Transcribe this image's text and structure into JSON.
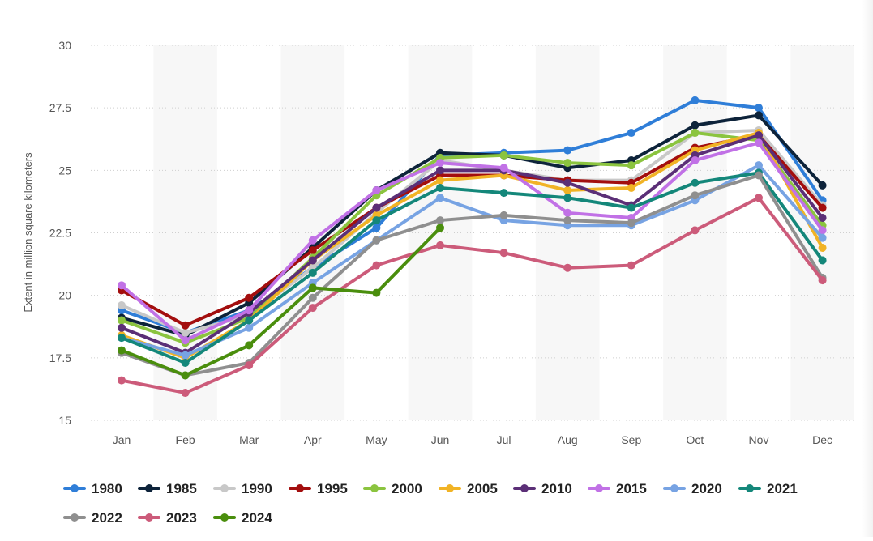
{
  "chart_data": {
    "type": "line",
    "title": "",
    "xlabel": "",
    "ylabel": "Extent in million square kilometers",
    "categories": [
      "Jan",
      "Feb",
      "Mar",
      "Apr",
      "May",
      "Jun",
      "Jul",
      "Aug",
      "Sep",
      "Oct",
      "Nov",
      "Dec"
    ],
    "yticks": [
      "15",
      "17.5",
      "20",
      "22.5",
      "25",
      "27.5",
      "30"
    ],
    "ylim": [
      15,
      30
    ],
    "grid": true,
    "legend_position": "bottom",
    "series": [
      {
        "name": "1980",
        "color": "#2f7ed8",
        "values": [
          19.4,
          18.5,
          19.4,
          21.1,
          22.7,
          25.6,
          25.7,
          25.8,
          26.5,
          27.8,
          27.5,
          23.8
        ]
      },
      {
        "name": "1985",
        "color": "#0d233a",
        "values": [
          19.1,
          18.4,
          19.7,
          21.9,
          24.2,
          25.7,
          25.6,
          25.1,
          25.4,
          26.8,
          27.2,
          24.4
        ]
      },
      {
        "name": "1990",
        "color": "#c8c8c8",
        "values": [
          19.6,
          18.5,
          19.2,
          21.1,
          23.3,
          25.4,
          25.0,
          24.6,
          24.6,
          26.5,
          26.6,
          23.6
        ]
      },
      {
        "name": "1995",
        "color": "#a30e0e",
        "values": [
          20.2,
          18.8,
          19.9,
          21.8,
          23.5,
          24.8,
          24.8,
          24.6,
          24.5,
          25.9,
          26.4,
          23.5
        ]
      },
      {
        "name": "2000",
        "color": "#8bc43f",
        "values": [
          19.0,
          18.1,
          19.1,
          21.5,
          24.0,
          25.5,
          25.6,
          25.3,
          25.2,
          26.5,
          26.2,
          22.8
        ]
      },
      {
        "name": "2005",
        "color": "#f1b325",
        "values": [
          18.4,
          17.5,
          19.0,
          21.4,
          23.2,
          24.6,
          24.8,
          24.2,
          24.3,
          25.8,
          26.5,
          21.9
        ]
      },
      {
        "name": "2010",
        "color": "#5b2f77",
        "values": [
          18.7,
          17.7,
          19.3,
          21.4,
          23.5,
          25.0,
          25.0,
          24.5,
          23.6,
          25.6,
          26.4,
          23.1
        ]
      },
      {
        "name": "2015",
        "color": "#c171e6",
        "values": [
          20.4,
          18.2,
          19.4,
          22.2,
          24.2,
          25.3,
          25.1,
          23.3,
          23.1,
          25.4,
          26.1,
          22.6
        ]
      },
      {
        "name": "2020",
        "color": "#77a3e3",
        "values": [
          18.3,
          17.6,
          18.7,
          20.5,
          22.2,
          23.9,
          23.0,
          22.8,
          22.8,
          23.8,
          25.2,
          22.3
        ]
      },
      {
        "name": "2021",
        "color": "#14877a",
        "values": [
          18.3,
          17.3,
          19.0,
          20.9,
          23.0,
          24.3,
          24.1,
          23.9,
          23.5,
          24.5,
          24.9,
          21.4
        ]
      },
      {
        "name": "2022",
        "color": "#8f8f8f",
        "values": [
          17.7,
          16.8,
          17.3,
          19.9,
          22.2,
          23.0,
          23.2,
          23.0,
          22.9,
          24.0,
          24.8,
          20.7
        ]
      },
      {
        "name": "2023",
        "color": "#cc5b7a",
        "values": [
          16.6,
          16.1,
          17.2,
          19.5,
          21.2,
          22.0,
          21.7,
          21.1,
          21.2,
          22.6,
          23.9,
          20.6
        ]
      },
      {
        "name": "2024",
        "color": "#4a8e0d",
        "values": [
          17.8,
          16.8,
          18.0,
          20.3,
          20.1,
          22.7,
          null,
          null,
          null,
          null,
          null,
          null
        ]
      }
    ]
  }
}
